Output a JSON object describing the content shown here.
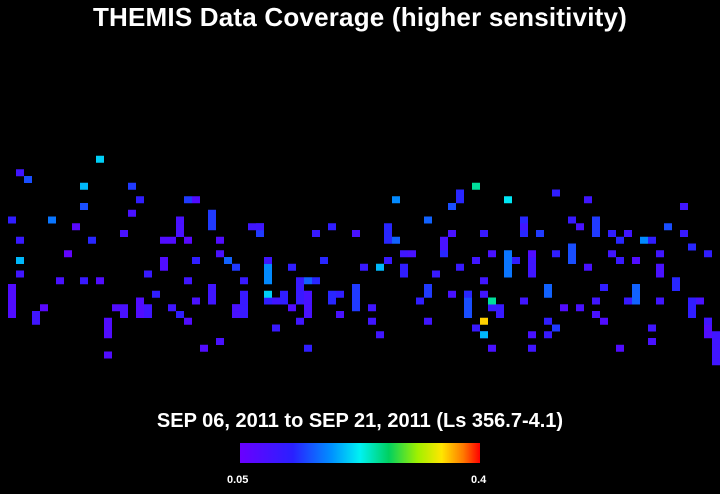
{
  "chart_data": {
    "type": "heatmap",
    "title": "THEMIS Data Coverage (higher sensitivity)",
    "subtitle": "SEP 06, 2011 to SEP 21, 2011 (Ls 356.7-4.1)",
    "colorbar": {
      "min_label": "0.05",
      "max_label": "0.4",
      "min": 0.05,
      "max": 0.4
    },
    "grid": {
      "cols": 90,
      "rows": 40
    },
    "tracks": [
      {
        "col": 1,
        "rows": [
          [
            28,
            33,
            0.08
          ]
        ]
      },
      {
        "col": 2,
        "rows": [
          [
            21,
            22,
            0.11
          ],
          [
            24,
            25,
            0.2
          ]
        ]
      },
      {
        "col": 3,
        "rows": [
          [
            12,
            13,
            0.15
          ]
        ]
      },
      {
        "col": 4,
        "rows": [
          [
            32,
            34,
            0.1
          ]
        ]
      },
      {
        "col": 6,
        "rows": [
          [
            18,
            19,
            0.17
          ]
        ]
      },
      {
        "col": 8,
        "rows": [
          [
            23,
            24,
            0.06
          ]
        ]
      },
      {
        "col": 10,
        "rows": [
          [
            27,
            28,
            0.11
          ],
          [
            16,
            17,
            0.15
          ]
        ]
      },
      {
        "col": 11,
        "rows": [
          [
            21,
            22,
            0.13
          ]
        ]
      },
      {
        "col": 12,
        "rows": [
          [
            9,
            10,
            0.21
          ]
        ]
      },
      {
        "col": 13,
        "rows": [
          [
            33,
            36,
            0.08
          ]
        ]
      },
      {
        "col": 15,
        "rows": [
          [
            31,
            33,
            0.09
          ]
        ]
      },
      {
        "col": 16,
        "rows": [
          [
            13,
            14,
            0.14
          ]
        ]
      },
      {
        "col": 17,
        "rows": [
          [
            30,
            33,
            0.08
          ]
        ]
      },
      {
        "col": 18,
        "rows": [
          [
            31,
            33,
            0.1
          ]
        ]
      },
      {
        "col": 19,
        "rows": [
          [
            29,
            30,
            0.12
          ]
        ]
      },
      {
        "col": 20,
        "rows": [
          [
            24,
            26,
            0.08
          ]
        ]
      },
      {
        "col": 22,
        "rows": [
          [
            32,
            33,
            0.12
          ],
          [
            18,
            21,
            0.09
          ]
        ]
      },
      {
        "col": 23,
        "rows": [
          [
            27,
            28,
            0.1
          ],
          [
            15,
            16,
            0.14
          ]
        ]
      },
      {
        "col": 26,
        "rows": [
          [
            28,
            31,
            0.1
          ],
          [
            17,
            20,
            0.14
          ]
        ]
      },
      {
        "col": 28,
        "rows": [
          [
            24,
            25,
            0.16
          ]
        ]
      },
      {
        "col": 29,
        "rows": [
          [
            31,
            33,
            0.09
          ]
        ]
      },
      {
        "col": 30,
        "rows": [
          [
            29,
            33,
            0.11
          ]
        ]
      },
      {
        "col": 32,
        "rows": [
          [
            19,
            21,
            0.14
          ]
        ]
      },
      {
        "col": 33,
        "rows": [
          [
            24,
            28,
            0.18
          ]
        ]
      },
      {
        "col": 35,
        "rows": [
          [
            29,
            31,
            0.12
          ]
        ]
      },
      {
        "col": 37,
        "rows": [
          [
            27,
            31,
            0.11
          ]
        ]
      },
      {
        "col": 38,
        "rows": [
          [
            29,
            33,
            0.09
          ]
        ]
      },
      {
        "col": 41,
        "rows": [
          [
            29,
            31,
            0.13
          ]
        ]
      },
      {
        "col": 44,
        "rows": [
          [
            28,
            32,
            0.14
          ]
        ]
      },
      {
        "col": 47,
        "rows": [
          [
            25,
            26,
            0.2
          ]
        ]
      },
      {
        "col": 48,
        "rows": [
          [
            19,
            22,
            0.13
          ]
        ]
      },
      {
        "col": 49,
        "rows": [
          [
            21,
            22,
            0.16
          ]
        ]
      },
      {
        "col": 50,
        "rows": [
          [
            25,
            27,
            0.12
          ]
        ]
      },
      {
        "col": 53,
        "rows": [
          [
            28,
            30,
            0.14
          ]
        ]
      },
      {
        "col": 54,
        "rows": [
          [
            26,
            27,
            0.11
          ]
        ]
      },
      {
        "col": 55,
        "rows": [
          [
            21,
            23,
            0.09
          ]
        ]
      },
      {
        "col": 57,
        "rows": [
          [
            14,
            16,
            0.13
          ]
        ]
      },
      {
        "col": 58,
        "rows": [
          [
            29,
            33,
            0.15
          ]
        ]
      },
      {
        "col": 60,
        "rows": [
          [
            29,
            30,
            0.1
          ]
        ]
      },
      {
        "col": 62,
        "rows": [
          [
            31,
            33,
            0.11
          ]
        ]
      },
      {
        "col": 63,
        "rows": [
          [
            23,
            27,
            0.17
          ]
        ]
      },
      {
        "col": 65,
        "rows": [
          [
            18,
            21,
            0.13
          ]
        ]
      },
      {
        "col": 66,
        "rows": [
          [
            24,
            27,
            0.1
          ]
        ]
      },
      {
        "col": 68,
        "rows": [
          [
            28,
            30,
            0.16
          ]
        ]
      },
      {
        "col": 71,
        "rows": [
          [
            22,
            25,
            0.15
          ]
        ]
      },
      {
        "col": 72,
        "rows": [
          [
            31,
            32,
            0.09
          ]
        ]
      },
      {
        "col": 74,
        "rows": [
          [
            18,
            21,
            0.14
          ]
        ]
      },
      {
        "col": 75,
        "rows": [
          [
            28,
            29,
            0.12
          ]
        ]
      },
      {
        "col": 77,
        "rows": [
          [
            24,
            25,
            0.11
          ]
        ]
      },
      {
        "col": 79,
        "rows": [
          [
            28,
            31,
            0.16
          ]
        ]
      },
      {
        "col": 80,
        "rows": [
          [
            21,
            22,
            0.18
          ]
        ]
      },
      {
        "col": 82,
        "rows": [
          [
            25,
            27,
            0.09
          ]
        ]
      },
      {
        "col": 84,
        "rows": [
          [
            27,
            29,
            0.13
          ]
        ]
      },
      {
        "col": 86,
        "rows": [
          [
            31,
            33,
            0.12
          ]
        ]
      },
      {
        "col": 88,
        "rows": [
          [
            34,
            36,
            0.08
          ]
        ]
      },
      {
        "col": 89,
        "rows": [
          [
            36,
            40,
            0.1
          ]
        ]
      }
    ],
    "points": [
      [
        10,
        13,
        0.2
      ],
      [
        17,
        15,
        0.12
      ],
      [
        24,
        15,
        0.08
      ],
      [
        32,
        19,
        0.1
      ],
      [
        41,
        19,
        0.12
      ],
      [
        49,
        15,
        0.18
      ],
      [
        56,
        16,
        0.15
      ],
      [
        59,
        13,
        0.25
      ],
      [
        63,
        15,
        0.22
      ],
      [
        69,
        14,
        0.12
      ],
      [
        73,
        15,
        0.1
      ],
      [
        77,
        21,
        0.13
      ],
      [
        85,
        16,
        0.1
      ],
      [
        1,
        18,
        0.12
      ],
      [
        9,
        19,
        0.07
      ],
      [
        15,
        20,
        0.09
      ],
      [
        20,
        21,
        0.08
      ],
      [
        23,
        21,
        0.07
      ],
      [
        27,
        21,
        0.08
      ],
      [
        31,
        19,
        0.1
      ],
      [
        39,
        20,
        0.11
      ],
      [
        44,
        20,
        0.09
      ],
      [
        53,
        18,
        0.16
      ],
      [
        56,
        20,
        0.09
      ],
      [
        60,
        20,
        0.11
      ],
      [
        65,
        19,
        0.1
      ],
      [
        67,
        20,
        0.14
      ],
      [
        71,
        18,
        0.11
      ],
      [
        72,
        19,
        0.09
      ],
      [
        76,
        20,
        0.12
      ],
      [
        78,
        20,
        0.1
      ],
      [
        81,
        21,
        0.12
      ],
      [
        83,
        19,
        0.15
      ],
      [
        85,
        20,
        0.11
      ],
      [
        2,
        26,
        0.1
      ],
      [
        7,
        27,
        0.09
      ],
      [
        12,
        27,
        0.08
      ],
      [
        18,
        26,
        0.11
      ],
      [
        24,
        24,
        0.12
      ],
      [
        27,
        23,
        0.09
      ],
      [
        33,
        24,
        0.1
      ],
      [
        36,
        25,
        0.12
      ],
      [
        40,
        24,
        0.13
      ],
      [
        45,
        25,
        0.11
      ],
      [
        48,
        24,
        0.11
      ],
      [
        51,
        23,
        0.09
      ],
      [
        59,
        24,
        0.1
      ],
      [
        61,
        23,
        0.09
      ],
      [
        64,
        24,
        0.12
      ],
      [
        66,
        23,
        0.08
      ],
      [
        69,
        23,
        0.12
      ],
      [
        73,
        25,
        0.09
      ],
      [
        76,
        23,
        0.1
      ],
      [
        79,
        24,
        0.08
      ],
      [
        82,
        23,
        0.1
      ],
      [
        86,
        22,
        0.13
      ],
      [
        88,
        23,
        0.12
      ],
      [
        5,
        31,
        0.07
      ],
      [
        14,
        31,
        0.08
      ],
      [
        21,
        31,
        0.1
      ],
      [
        24,
        30,
        0.09
      ],
      [
        29,
        31,
        0.09
      ],
      [
        34,
        30,
        0.1
      ],
      [
        36,
        31,
        0.08
      ],
      [
        42,
        32,
        0.09
      ],
      [
        46,
        31,
        0.1
      ],
      [
        52,
        30,
        0.12
      ],
      [
        56,
        29,
        0.09
      ],
      [
        61,
        31,
        0.11
      ],
      [
        65,
        30,
        0.1
      ],
      [
        70,
        31,
        0.08
      ],
      [
        74,
        32,
        0.09
      ],
      [
        78,
        30,
        0.11
      ],
      [
        82,
        30,
        0.1
      ],
      [
        86,
        30,
        0.12
      ],
      [
        87,
        30,
        0.09
      ],
      [
        13,
        34,
        0.08
      ],
      [
        23,
        33,
        0.08
      ],
      [
        27,
        36,
        0.09
      ],
      [
        34,
        34,
        0.11
      ],
      [
        37,
        33,
        0.1
      ],
      [
        46,
        33,
        0.1
      ],
      [
        53,
        33,
        0.1
      ],
      [
        59,
        34,
        0.11
      ],
      [
        60,
        35,
        0.09
      ],
      [
        66,
        35,
        0.09
      ],
      [
        68,
        35,
        0.11
      ],
      [
        75,
        33,
        0.08
      ],
      [
        81,
        34,
        0.1
      ],
      [
        88,
        33,
        0.09
      ],
      [
        13,
        38,
        0.08
      ],
      [
        25,
        37,
        0.08
      ],
      [
        38,
        37,
        0.12
      ],
      [
        47,
        35,
        0.1
      ],
      [
        60,
        35,
        0.2
      ],
      [
        61,
        37,
        0.09
      ],
      [
        66,
        37,
        0.1
      ],
      [
        77,
        37,
        0.08
      ],
      [
        81,
        36,
        0.09
      ],
      [
        89,
        35,
        0.1
      ],
      [
        88,
        33,
        0.1
      ],
      [
        16,
        17,
        0.09
      ],
      [
        21,
        21,
        0.08
      ],
      [
        30,
        27,
        0.11
      ],
      [
        39,
        27,
        0.13
      ],
      [
        29,
        25,
        0.14
      ],
      [
        33,
        30,
        0.12
      ],
      [
        50,
        23,
        0.1
      ],
      [
        55,
        23,
        0.13
      ],
      [
        57,
        25,
        0.11
      ],
      [
        60,
        27,
        0.1
      ],
      [
        60,
        33,
        0.35
      ],
      [
        61,
        30,
        0.25
      ],
      [
        58,
        29,
        0.13
      ],
      [
        68,
        33,
        0.12
      ],
      [
        69,
        34,
        0.14
      ],
      [
        74,
        30,
        0.1
      ],
      [
        2,
        11,
        0.1
      ],
      [
        33,
        29,
        0.21
      ],
      [
        38,
        27,
        0.16
      ],
      [
        42,
        29,
        0.12
      ]
    ]
  }
}
